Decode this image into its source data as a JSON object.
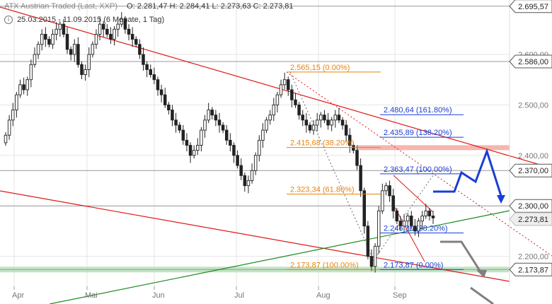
{
  "header": {
    "instrument": "ATX Austrian Traded (Last, XXP)",
    "ohlc": "O: 2.281,47  H: 2.284,41  L: 2.273,63  C: 2.273,81",
    "range": "25.03.2015 - 11.09.2015 (6 Monate, 1 Tag)"
  },
  "colors": {
    "candle": "#222222",
    "grid": "#e6e6e6",
    "fib_orange": "#e8850c",
    "fib_blue": "#1a3fd4",
    "trend_red": "#e01818",
    "trend_green": "#1d8a1d",
    "forecast_blue": "#1a3fd4",
    "forecast_gray": "#808080",
    "zone_red": "#f4a9a0",
    "zone_green": "#b9dfb9"
  },
  "chart_data": {
    "type": "candlestick",
    "x_months": [
      "Apr",
      "Mai",
      "Jun",
      "Jul",
      "Aug",
      "Sep"
    ],
    "y_ticks": [
      "2.600,00",
      "2.500,00",
      "2.400,00",
      "2.200,00"
    ],
    "ylim": [
      2150,
      2710
    ],
    "price_boxes": [
      {
        "label": "2.695,57",
        "value": 2695.57
      },
      {
        "label": "2.586,00",
        "value": 2586.0
      },
      {
        "label": "2.370,00",
        "value": 2370.0
      },
      {
        "label": "2.300,00",
        "value": 2300.0
      },
      {
        "label": "2.273,81",
        "value": 2273.81,
        "style": "last"
      },
      {
        "label": "2.173,87",
        "value": 2173.87
      }
    ],
    "fib_orange": [
      {
        "label": "2.565,15 (0.00%)",
        "value": 2565.15
      },
      {
        "label": "2.415,68 (38.20%)",
        "value": 2415.68
      },
      {
        "label": "2.323,34 (61.80%)",
        "value": 2323.34
      },
      {
        "label": "2.173,87 (100.00%)",
        "value": 2173.87
      }
    ],
    "fib_blue": [
      {
        "label": "2.480,64 (161.80%)",
        "value": 2480.64
      },
      {
        "label": "2.435,89 (138.20%)",
        "value": 2435.89
      },
      {
        "label": "2.363,47 (100.00%)",
        "value": 2363.47
      },
      {
        "label": "2.246,30 (38.20%)",
        "value": 2246.3
      },
      {
        "label": "2.173,87 (0.00%)",
        "value": 2173.87
      }
    ],
    "closes": [
      2440,
      2470,
      2490,
      2520,
      2540,
      2530,
      2550,
      2580,
      2600,
      2620,
      2640,
      2630,
      2620,
      2640,
      2650,
      2660,
      2640,
      2610,
      2600,
      2620,
      2580,
      2560,
      2570,
      2600,
      2620,
      2640,
      2660,
      2650,
      2640,
      2630,
      2650,
      2660,
      2670,
      2650,
      2640,
      2630,
      2620,
      2600,
      2580,
      2570,
      2560,
      2550,
      2530,
      2520,
      2500,
      2490,
      2470,
      2460,
      2450,
      2430,
      2420,
      2400,
      2410,
      2420,
      2450,
      2470,
      2490,
      2480,
      2470,
      2460,
      2450,
      2430,
      2420,
      2400,
      2380,
      2360,
      2340,
      2350,
      2370,
      2400,
      2430,
      2450,
      2470,
      2480,
      2500,
      2520,
      2540,
      2550,
      2530,
      2510,
      2500,
      2480,
      2470,
      2460,
      2450,
      2460,
      2470,
      2480,
      2470,
      2460,
      2470,
      2480,
      2470,
      2460,
      2440,
      2420,
      2410,
      2380,
      2330,
      2260,
      2200,
      2180,
      2220,
      2290,
      2330,
      2340,
      2320,
      2290,
      2270,
      2260,
      2270,
      2280,
      2260,
      2250,
      2270,
      2280,
      2290,
      2280,
      2276
    ]
  }
}
